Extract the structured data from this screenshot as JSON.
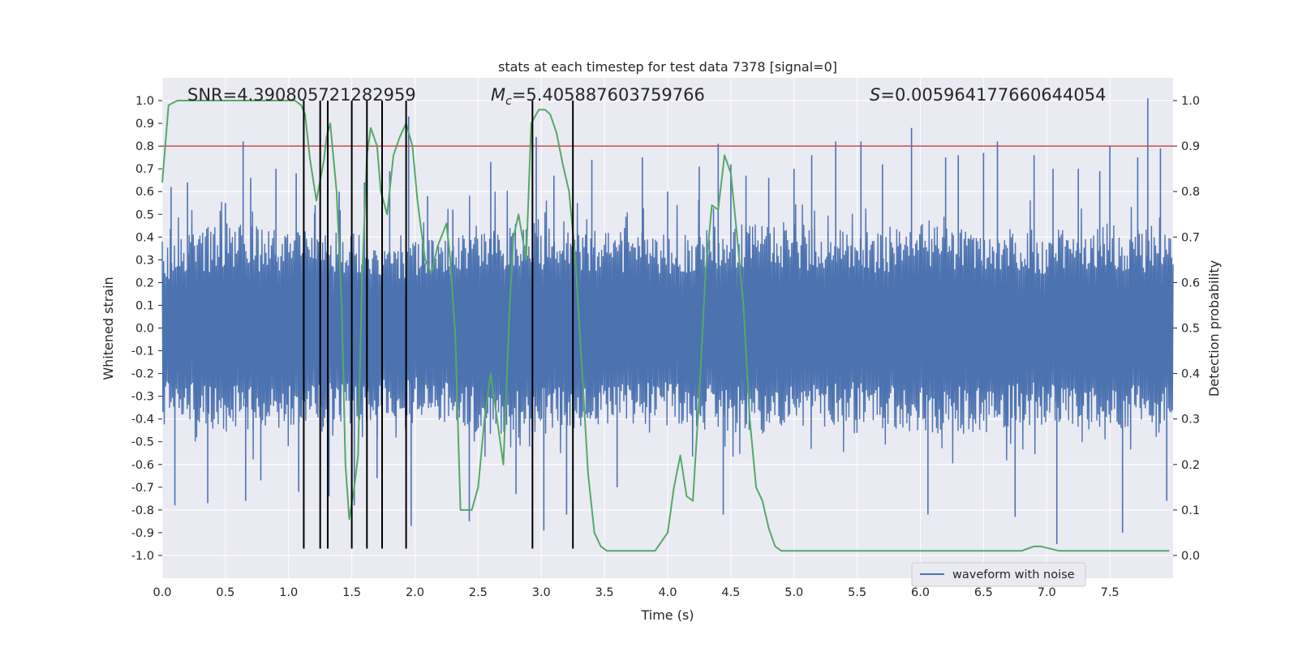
{
  "chart_data": {
    "type": "line",
    "title": "stats at each timestep for test data 7378 [signal=0]",
    "xlabel": "Time (s)",
    "ylabel": "Whitened strain",
    "ylabel_right": "Detection probability",
    "xlim": [
      0.0,
      8.0
    ],
    "ylim": [
      -1.1,
      1.1
    ],
    "ylim_right": [
      -0.05,
      1.05
    ],
    "grid": true,
    "xticks": [
      0.0,
      0.5,
      1.0,
      1.5,
      2.0,
      2.5,
      3.0,
      3.5,
      4.0,
      4.5,
      5.0,
      5.5,
      6.0,
      6.5,
      7.0,
      7.5
    ],
    "xtick_labels": [
      "0.0",
      "0.5",
      "1.0",
      "1.5",
      "2.0",
      "2.5",
      "3.0",
      "3.5",
      "4.0",
      "4.5",
      "5.0",
      "5.5",
      "6.0",
      "6.5",
      "7.0",
      "7.5"
    ],
    "yticks": [
      -1.0,
      -0.9,
      -0.8,
      -0.7,
      -0.6,
      -0.5,
      -0.4,
      -0.3,
      -0.2,
      -0.1,
      0.0,
      0.1,
      0.2,
      0.3,
      0.4,
      0.5,
      0.6,
      0.7,
      0.8,
      0.9,
      1.0
    ],
    "ytick_labels": [
      "-1.0",
      "-0.9",
      "-0.8",
      "-0.7",
      "-0.6",
      "-0.5",
      "-0.4",
      "-0.3",
      "-0.2",
      "-0.1",
      "0.0",
      "0.1",
      "0.2",
      "0.3",
      "0.4",
      "0.5",
      "0.6",
      "0.7",
      "0.8",
      "0.9",
      "1.0"
    ],
    "yticks_right": [
      0.0,
      0.1,
      0.2,
      0.3,
      0.4,
      0.5,
      0.6,
      0.7,
      0.8,
      0.9,
      1.0
    ],
    "ytick_labels_right": [
      "0.0",
      "0.1",
      "0.2",
      "0.3",
      "0.4",
      "0.5",
      "0.6",
      "0.7",
      "0.8",
      "0.9",
      "1.0"
    ],
    "annotations": {
      "snr": "SNR=4.390805721282959",
      "mc_symbol": "M",
      "mc_subscript": "c",
      "mc_value": "=5.405887603759766",
      "s_symbol": "S",
      "s_value": "=0.005964177660644054"
    },
    "legend": {
      "entries": [
        "waveform with noise"
      ],
      "placement": "lower-right"
    },
    "colors": {
      "waveform": "#4c72b0",
      "probability": "#55a868",
      "threshold": "#c44e52",
      "markers": "#000000",
      "background": "#eaeaf2",
      "grid": "#ffffff"
    },
    "series": [
      {
        "name": "waveform with noise",
        "axis": "left",
        "envelope_upper": [
          [
            0.0,
            0.45
          ],
          [
            0.5,
            0.55
          ],
          [
            1.0,
            0.5
          ],
          [
            1.5,
            0.5
          ],
          [
            2.0,
            0.45
          ],
          [
            2.5,
            0.55
          ],
          [
            3.0,
            0.55
          ],
          [
            3.5,
            0.5
          ],
          [
            4.0,
            0.5
          ],
          [
            4.5,
            0.55
          ],
          [
            5.0,
            0.55
          ],
          [
            5.5,
            0.5
          ],
          [
            6.0,
            0.55
          ],
          [
            6.5,
            0.55
          ],
          [
            7.0,
            0.5
          ],
          [
            7.5,
            0.55
          ],
          [
            8.0,
            0.5
          ]
        ],
        "spikes": [
          [
            0.07,
            0.62
          ],
          [
            0.1,
            -0.78
          ],
          [
            0.2,
            0.64
          ],
          [
            0.36,
            -0.77
          ],
          [
            0.5,
            0.55
          ],
          [
            0.64,
            0.82
          ],
          [
            0.66,
            -0.76
          ],
          [
            0.7,
            0.66
          ],
          [
            0.78,
            -0.67
          ],
          [
            0.9,
            0.7
          ],
          [
            1.06,
            0.68
          ],
          [
            1.08,
            -0.72
          ],
          [
            1.21,
            0.54
          ],
          [
            1.25,
            0.93
          ],
          [
            1.32,
            -0.74
          ],
          [
            1.4,
            0.6
          ],
          [
            1.52,
            -0.78
          ],
          [
            1.6,
            0.64
          ],
          [
            1.7,
            -0.66
          ],
          [
            1.8,
            0.69
          ],
          [
            1.95,
            0.93
          ],
          [
            1.97,
            -0.87
          ],
          [
            2.1,
            0.58
          ],
          [
            2.3,
            0.52
          ],
          [
            2.43,
            -0.85
          ],
          [
            2.6,
            0.73
          ],
          [
            2.8,
            -0.73
          ],
          [
            2.96,
            0.84
          ],
          [
            3.02,
            -0.89
          ],
          [
            3.1,
            0.67
          ],
          [
            3.2,
            -0.82
          ],
          [
            3.4,
            0.74
          ],
          [
            3.6,
            -0.7
          ],
          [
            3.8,
            0.75
          ],
          [
            4.0,
            0.6
          ],
          [
            4.25,
            0.71
          ],
          [
            4.4,
            0.81
          ],
          [
            4.44,
            -0.82
          ],
          [
            4.5,
            0.72
          ],
          [
            4.62,
            0.67
          ],
          [
            4.8,
            0.66
          ],
          [
            5.0,
            0.7
          ],
          [
            5.14,
            0.76
          ],
          [
            5.33,
            0.82
          ],
          [
            5.53,
            0.82
          ],
          [
            5.7,
            0.72
          ],
          [
            5.93,
            0.88
          ],
          [
            6.06,
            -0.82
          ],
          [
            6.2,
            0.75
          ],
          [
            6.3,
            0.76
          ],
          [
            6.5,
            0.77
          ],
          [
            6.61,
            0.82
          ],
          [
            6.75,
            -0.83
          ],
          [
            6.9,
            0.76
          ],
          [
            7.05,
            0.7
          ],
          [
            7.08,
            -0.95
          ],
          [
            7.25,
            0.7
          ],
          [
            7.42,
            0.69
          ],
          [
            7.5,
            0.8
          ],
          [
            7.6,
            -0.9
          ],
          [
            7.72,
            0.75
          ],
          [
            7.8,
            1.01
          ],
          [
            7.9,
            0.79
          ],
          [
            7.95,
            -0.76
          ]
        ]
      },
      {
        "name": "",
        "axis": "right",
        "x": [
          0.0,
          0.05,
          0.12,
          0.3,
          0.6,
          0.9,
          1.0,
          1.05,
          1.1,
          1.13,
          1.17,
          1.22,
          1.28,
          1.3,
          1.33,
          1.38,
          1.42,
          1.45,
          1.48,
          1.52,
          1.55,
          1.58,
          1.62,
          1.65,
          1.7,
          1.73,
          1.78,
          1.83,
          1.88,
          1.93,
          1.98,
          2.02,
          2.08,
          2.13,
          2.18,
          2.25,
          2.28,
          2.32,
          2.36,
          2.41,
          2.45,
          2.5,
          2.55,
          2.6,
          2.65,
          2.7,
          2.75,
          2.78,
          2.82,
          2.85,
          2.88,
          2.92,
          2.98,
          3.03,
          3.07,
          3.12,
          3.17,
          3.22,
          3.27,
          3.32,
          3.37,
          3.42,
          3.47,
          3.52,
          3.57,
          3.62,
          3.7,
          3.8,
          3.9,
          3.95,
          4.0,
          4.05,
          4.1,
          4.15,
          4.2,
          4.25,
          4.3,
          4.35,
          4.4,
          4.45,
          4.5,
          4.55,
          4.6,
          4.65,
          4.7,
          4.75,
          4.8,
          4.85,
          4.9,
          5.0,
          5.2,
          5.5,
          6.0,
          6.5,
          6.8,
          6.9,
          6.95,
          7.1,
          7.3,
          7.6,
          7.9,
          7.97
        ],
        "y": [
          0.82,
          0.99,
          1.0,
          1.0,
          1.0,
          1.0,
          1.0,
          1.0,
          0.99,
          0.97,
          0.87,
          0.78,
          0.87,
          0.92,
          0.95,
          0.8,
          0.55,
          0.2,
          0.08,
          0.15,
          0.22,
          0.6,
          0.88,
          0.94,
          0.9,
          0.8,
          0.75,
          0.88,
          0.92,
          0.95,
          0.9,
          0.78,
          0.65,
          0.62,
          0.68,
          0.73,
          0.65,
          0.48,
          0.1,
          0.1,
          0.1,
          0.15,
          0.3,
          0.4,
          0.3,
          0.2,
          0.55,
          0.7,
          0.75,
          0.7,
          0.65,
          0.95,
          0.98,
          0.98,
          0.97,
          0.93,
          0.86,
          0.8,
          0.65,
          0.42,
          0.18,
          0.05,
          0.02,
          0.01,
          0.01,
          0.01,
          0.01,
          0.01,
          0.01,
          0.03,
          0.05,
          0.15,
          0.22,
          0.13,
          0.12,
          0.35,
          0.62,
          0.77,
          0.76,
          0.88,
          0.84,
          0.7,
          0.55,
          0.3,
          0.15,
          0.12,
          0.06,
          0.02,
          0.01,
          0.01,
          0.01,
          0.01,
          0.01,
          0.01,
          0.01,
          0.02,
          0.02,
          0.01,
          0.01,
          0.01,
          0.01,
          0.01
        ]
      }
    ],
    "threshold": {
      "axis": "left",
      "y": 0.8
    },
    "vertical_markers": [
      1.12,
      1.25,
      1.31,
      1.5,
      1.62,
      1.74,
      1.93,
      2.93,
      3.25
    ],
    "vertical_marker_range": [
      -0.97,
      1.0
    ]
  }
}
